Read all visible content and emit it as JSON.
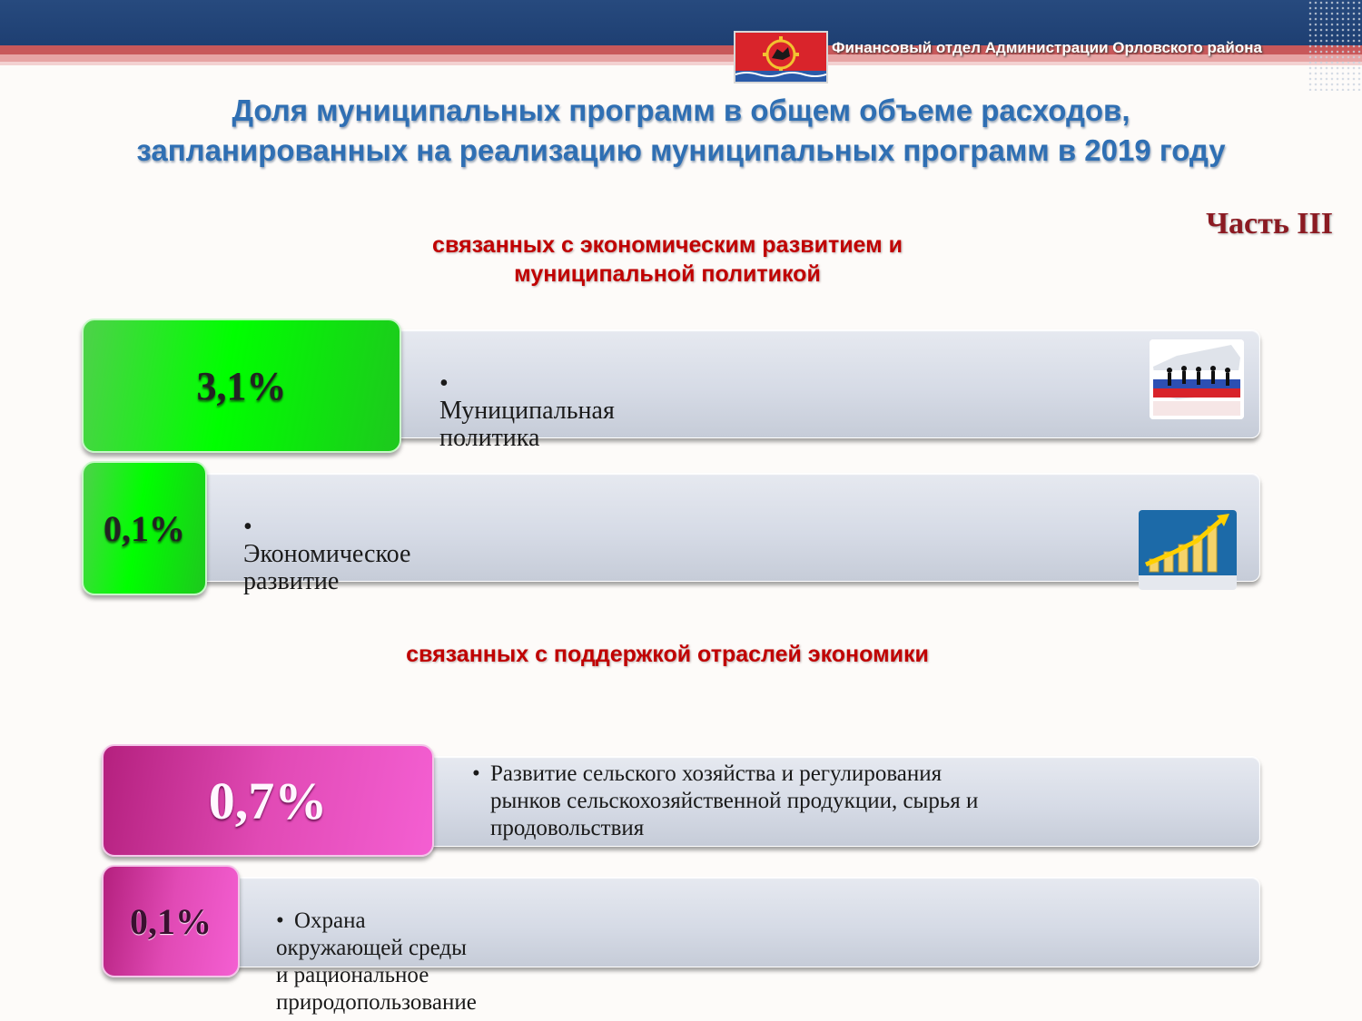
{
  "header": {
    "org_name": "Финансовый отдел Администрации Орловского района"
  },
  "title": "Доля муниципальных программ в общем объеме расходов,\nзапланированных на  реализацию муниципальных программ в 2019 году",
  "part_label": "Часть III",
  "section1": {
    "title": "связанных с экономическим развитием и\nмуниципальной политикой",
    "items": [
      {
        "value": "3,1%",
        "label": "Муниципальная политика",
        "icon": "russia-map-people-icon"
      },
      {
        "value": "0,1%",
        "label": "Экономическое развитие",
        "icon": "growth-chart-icon"
      }
    ]
  },
  "section2": {
    "title": "связанных с поддержкой отраслей экономики",
    "items": [
      {
        "value": "0,7%",
        "label_lines": [
          "Развитие сельского хозяйства и регулирования",
          "рынков сельскохозяйственной продукции, сырья и",
          "продовольствия"
        ]
      },
      {
        "value": "0,1%",
        "label": "Охрана окружающей среды и рациональное природопользование"
      }
    ]
  },
  "colors": {
    "title_blue": "#2f6fb3",
    "section_red": "#c00000",
    "badge_green": "#00ff00",
    "badge_pink": "#e14ab5",
    "top_band": "#1e3f72"
  }
}
